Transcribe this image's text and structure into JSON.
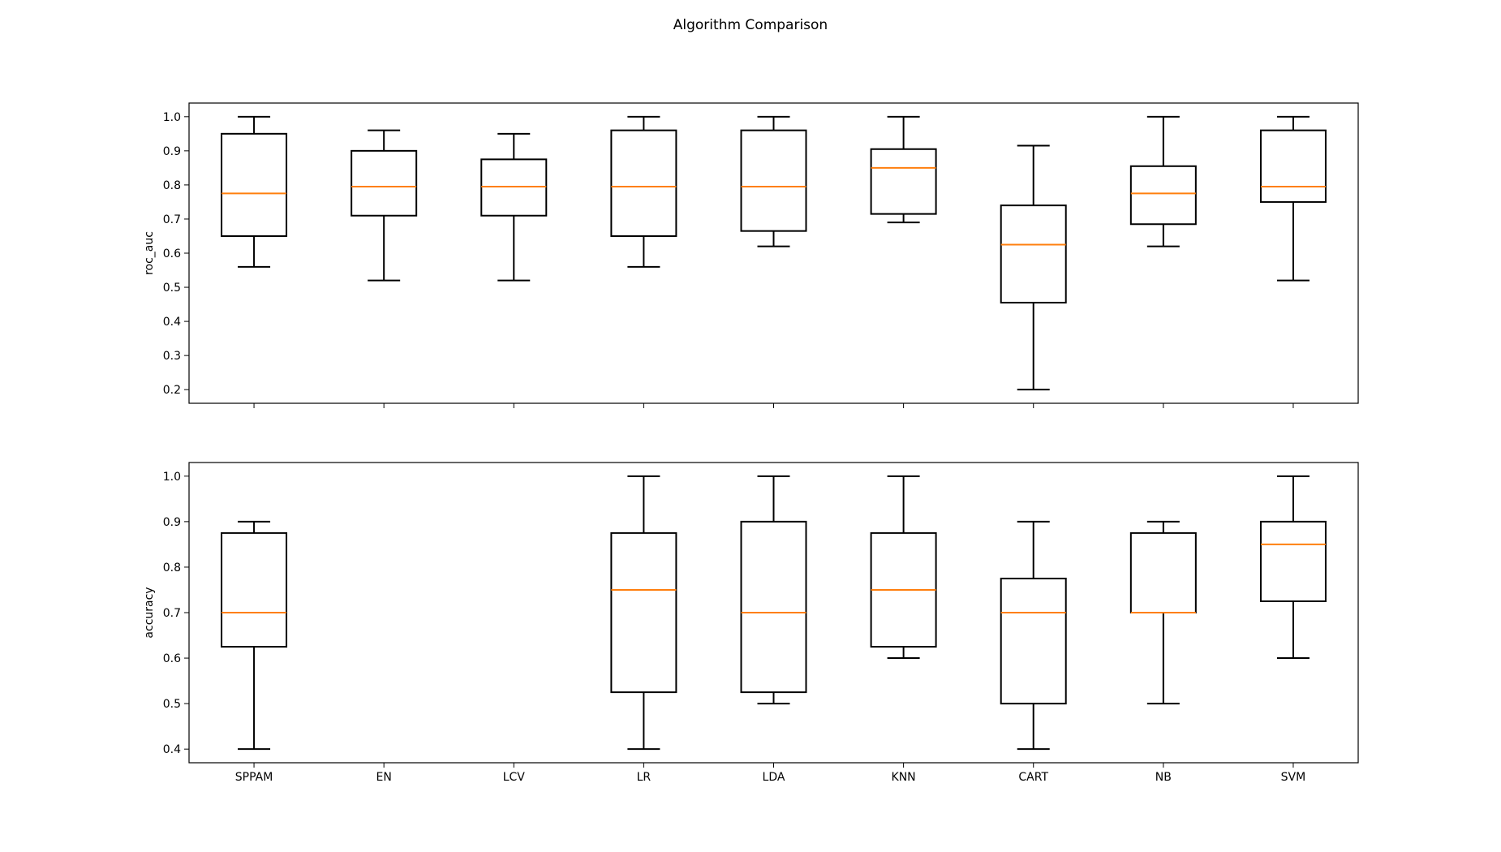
{
  "figure": {
    "suptitle": "Algorithm Comparison"
  },
  "colors": {
    "median": "#ff7f0e",
    "box": "#000000"
  },
  "chart_data": [
    {
      "type": "boxplot",
      "ylabel": "roc_auc",
      "ylim": [
        0.16,
        1.04
      ],
      "yticks": [
        0.2,
        0.3,
        0.4,
        0.5,
        0.6,
        0.7,
        0.8,
        0.9,
        1.0
      ],
      "ytick_labels": [
        "0.2",
        "0.3",
        "0.4",
        "0.5",
        "0.6",
        "0.7",
        "0.8",
        "0.9",
        "1.0"
      ],
      "show_xtick_labels": false,
      "categories": [
        "SPPAM",
        "EN",
        "LCV",
        "LR",
        "LDA",
        "KNN",
        "CART",
        "NB",
        "SVM"
      ],
      "boxes": [
        {
          "whislo": 0.56,
          "q1": 0.65,
          "med": 0.775,
          "q3": 0.95,
          "whishi": 1.0
        },
        {
          "whislo": 0.52,
          "q1": 0.71,
          "med": 0.795,
          "q3": 0.9,
          "whishi": 0.96
        },
        {
          "whislo": 0.52,
          "q1": 0.71,
          "med": 0.795,
          "q3": 0.875,
          "whishi": 0.95
        },
        {
          "whislo": 0.56,
          "q1": 0.65,
          "med": 0.795,
          "q3": 0.96,
          "whishi": 1.0
        },
        {
          "whislo": 0.62,
          "q1": 0.665,
          "med": 0.795,
          "q3": 0.96,
          "whishi": 1.0
        },
        {
          "whislo": 0.69,
          "q1": 0.715,
          "med": 0.85,
          "q3": 0.905,
          "whishi": 1.0
        },
        {
          "whislo": 0.2,
          "q1": 0.455,
          "med": 0.625,
          "q3": 0.74,
          "whishi": 0.915
        },
        {
          "whislo": 0.62,
          "q1": 0.685,
          "med": 0.775,
          "q3": 0.855,
          "whishi": 1.0
        },
        {
          "whislo": 0.52,
          "q1": 0.75,
          "med": 0.795,
          "q3": 0.96,
          "whishi": 1.0
        }
      ]
    },
    {
      "type": "boxplot",
      "ylabel": "accuracy",
      "ylim": [
        0.37,
        1.03
      ],
      "yticks": [
        0.4,
        0.5,
        0.6,
        0.7,
        0.8,
        0.9,
        1.0
      ],
      "ytick_labels": [
        "0.4",
        "0.5",
        "0.6",
        "0.7",
        "0.8",
        "0.9",
        "1.0"
      ],
      "show_xtick_labels": true,
      "categories": [
        "SPPAM",
        "EN",
        "LCV",
        "LR",
        "LDA",
        "KNN",
        "CART",
        "NB",
        "SVM"
      ],
      "boxes": [
        {
          "whislo": 0.4,
          "q1": 0.625,
          "med": 0.7,
          "q3": 0.875,
          "whishi": 0.9
        },
        null,
        null,
        {
          "whislo": 0.4,
          "q1": 0.525,
          "med": 0.75,
          "q3": 0.875,
          "whishi": 1.0
        },
        {
          "whislo": 0.5,
          "q1": 0.525,
          "med": 0.7,
          "q3": 0.9,
          "whishi": 1.0
        },
        {
          "whislo": 0.6,
          "q1": 0.625,
          "med": 0.75,
          "q3": 0.875,
          "whishi": 1.0
        },
        {
          "whislo": 0.4,
          "q1": 0.5,
          "med": 0.7,
          "q3": 0.775,
          "whishi": 0.9
        },
        {
          "whislo": 0.5,
          "q1": 0.7,
          "med": 0.7,
          "q3": 0.875,
          "whishi": 0.9
        },
        {
          "whislo": 0.6,
          "q1": 0.725,
          "med": 0.85,
          "q3": 0.9,
          "whishi": 1.0
        }
      ]
    }
  ]
}
